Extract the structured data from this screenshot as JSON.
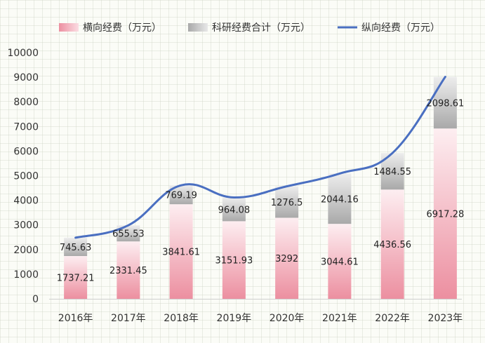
{
  "chart_data": {
    "type": "bar",
    "categories": [
      "2016年",
      "2017年",
      "2018年",
      "2019年",
      "2020年",
      "2021年",
      "2022年",
      "2023年"
    ],
    "series": [
      {
        "name": "横向经费（万元）",
        "kind": "stacked-bar",
        "color": "#ec8fa0",
        "values": [
          1737.21,
          2331.45,
          3841.61,
          3151.93,
          3292,
          3044.61,
          4436.56,
          6917.28
        ],
        "labels": [
          "1737.21",
          "2331.45",
          "3841.61",
          "3151.93",
          "3292",
          "3044.61",
          "4436.56",
          "6917.28"
        ]
      },
      {
        "name": "科研经费合计（万元）",
        "kind": "stacked-bar",
        "color": "#a9a9a9",
        "values": [
          745.63,
          655.53,
          769.19,
          964.08,
          1276.5,
          2044.16,
          1484.55,
          2098.61
        ],
        "labels": [
          "745.63",
          "655.53",
          "769.19",
          "964.08",
          "1276.5",
          "2044.16",
          "1484.55",
          "2098.61"
        ]
      },
      {
        "name": "纵向经费（万元）",
        "kind": "line",
        "color": "#4a6fc1",
        "values": [
          2482.84,
          2986.98,
          4610.8,
          4116.01,
          4568.5,
          5088.77,
          5921.11,
          9015.89
        ]
      }
    ],
    "ylim": [
      0,
      10000
    ],
    "yticks": [
      "0",
      "1000",
      "2000",
      "3000",
      "4000",
      "5000",
      "6000",
      "7000",
      "8000",
      "9000",
      "10000"
    ],
    "grid": true,
    "legend": "top",
    "title": "",
    "xlabel": "",
    "ylabel": ""
  }
}
